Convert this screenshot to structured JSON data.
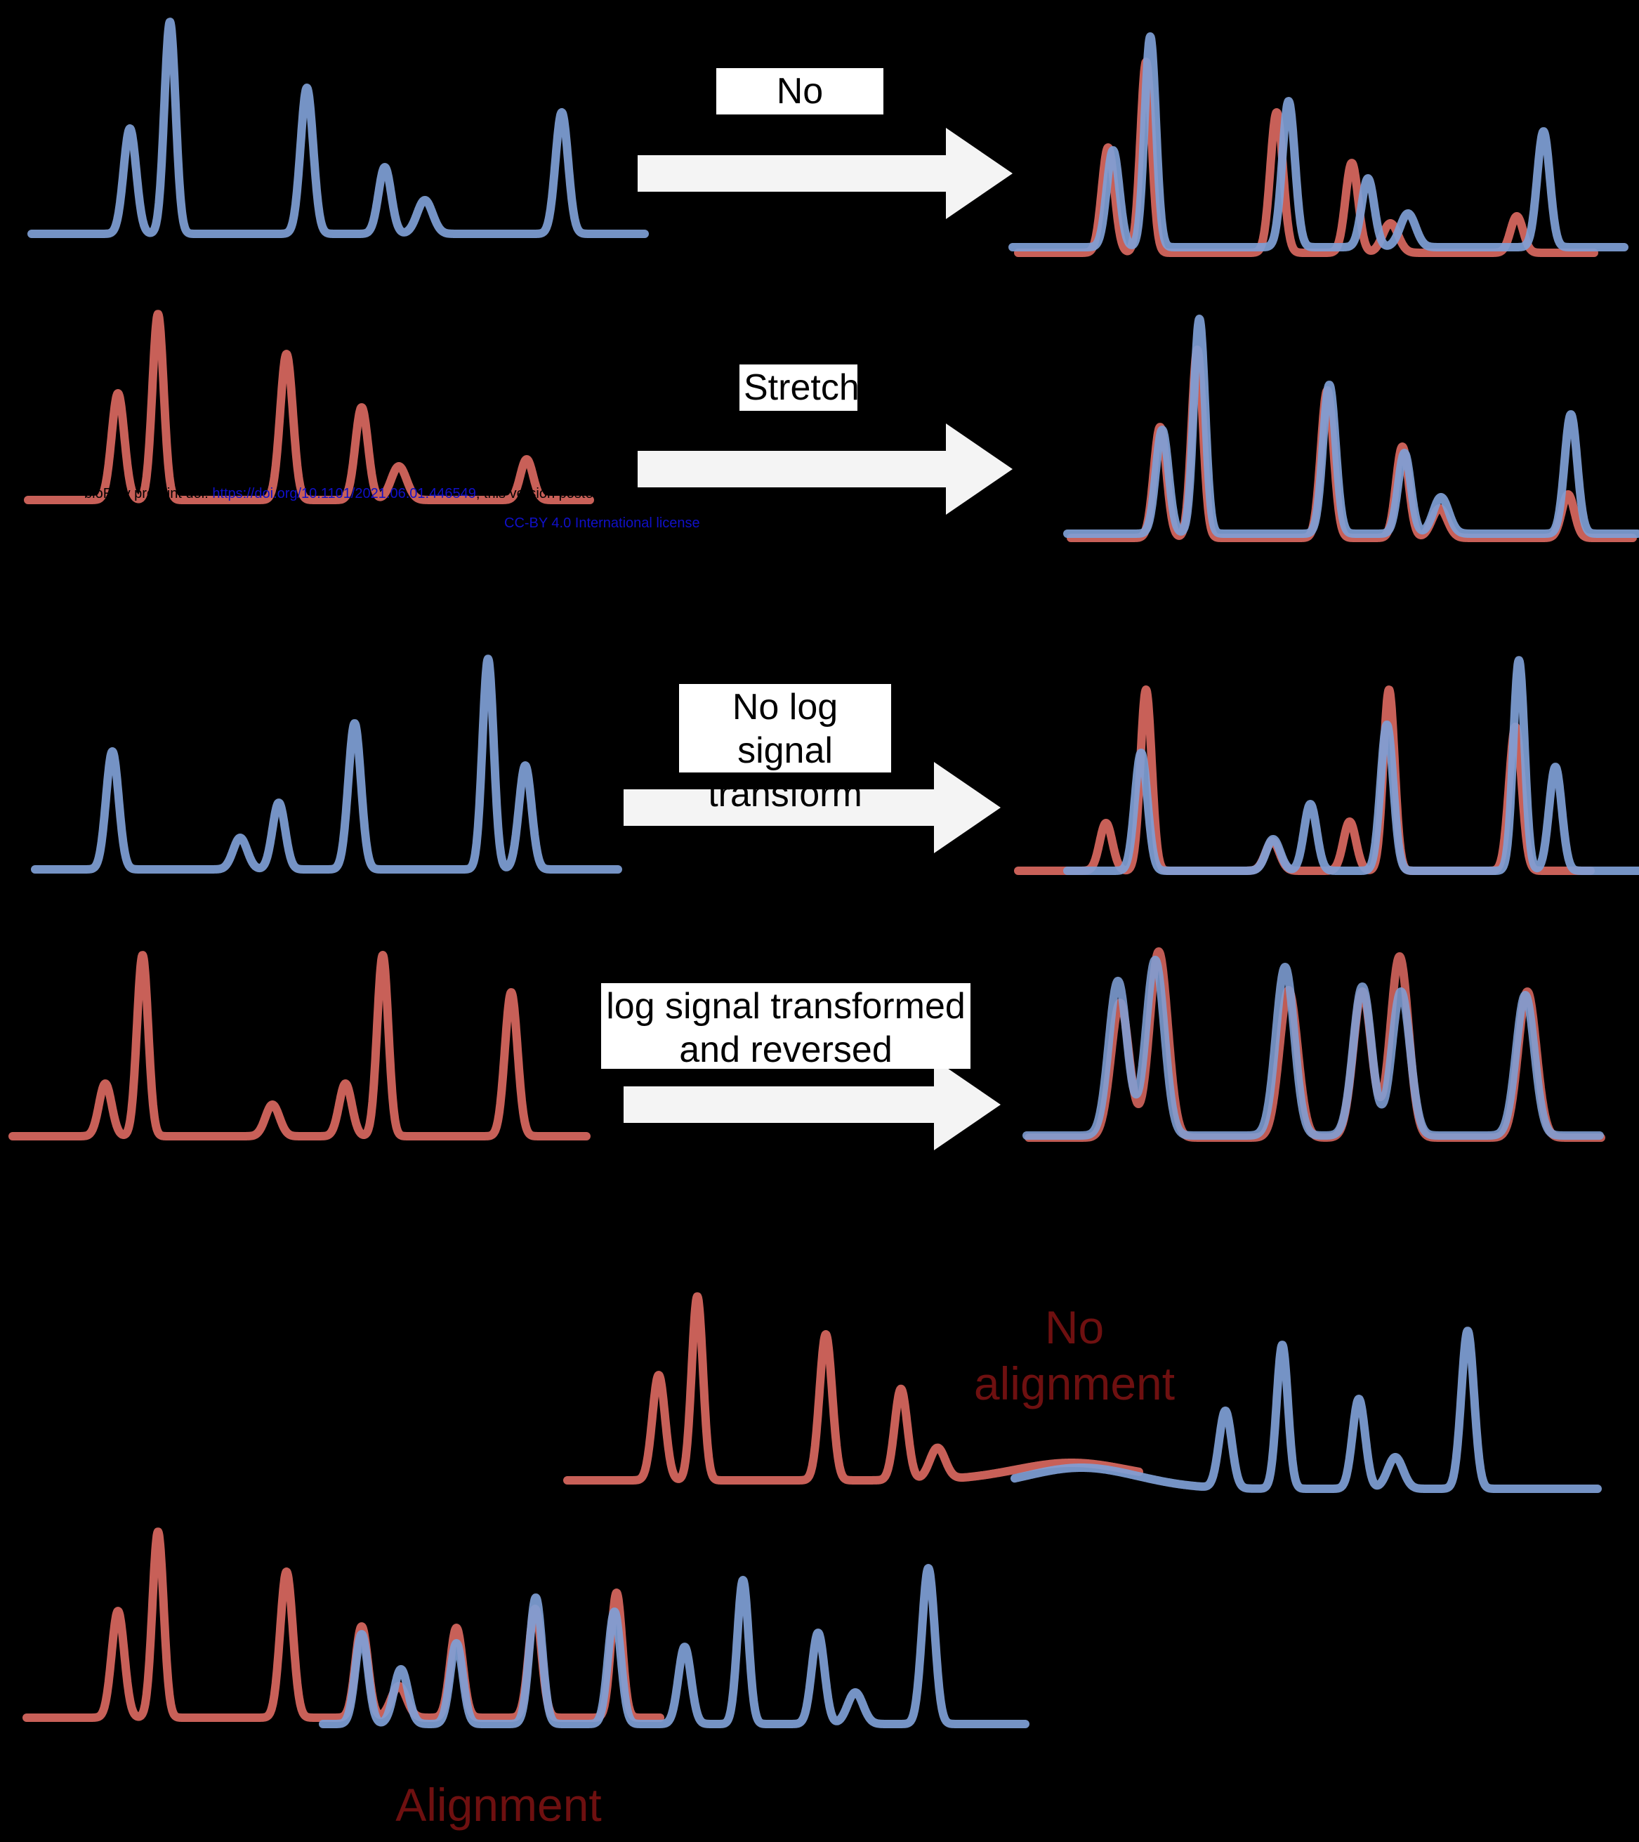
{
  "colors": {
    "blue": "#7f9fd6",
    "red": "#d96860",
    "arrow": "#f4f4f4",
    "background": "#000000",
    "dark_red": "#6e1010"
  },
  "labels": {
    "no_stretch": "No stretch",
    "stretch": "Stretch",
    "no_log_line1": "No log signal",
    "no_log_line2": "transform",
    "log_line1": "log signal transformed",
    "log_line2": "and reversed",
    "no_alignment_line1": "No",
    "no_alignment_line2": "alignment",
    "alignment": "Alignment"
  },
  "watermark": {
    "prefix": "bioRxiv preprint doi: ",
    "doi_link": "https://doi.org/10.1101/2021.06.01.446549",
    "suffix": "; this version posted June 2, 2021. The copyright holder for this preprint",
    "license": "CC-BY 4.0 International license"
  }
}
